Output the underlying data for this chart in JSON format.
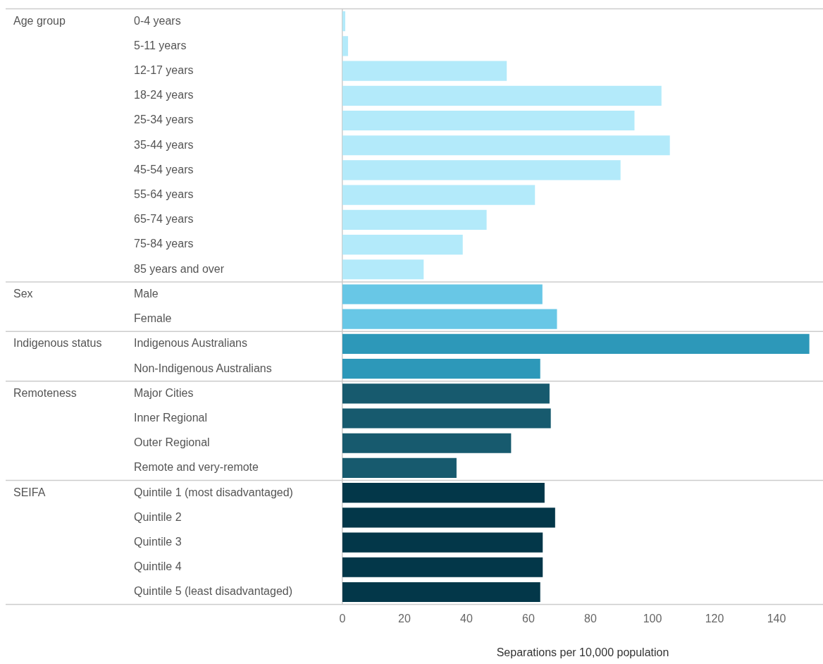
{
  "chart_data": {
    "type": "bar",
    "orientation": "horizontal",
    "xlabel": "Separations per 10,000 population",
    "categories": [
      "0-4 years",
      "5-11 years",
      "12-17 years",
      "18-24 years",
      "25-34 years",
      "35-44 years",
      "45-54 years",
      "55-64 years",
      "65-74 years",
      "75-84 years",
      "85 years and over",
      "Male",
      "Female",
      "Indigenous Australians",
      "Non-Indigenous Australians",
      "Major Cities",
      "Inner Regional",
      "Outer Regional",
      "Remote and very-remote",
      "Quintile 1 (most disadvantaged)",
      "Quintile 2",
      "Quintile 3",
      "Quintile 4",
      "Quintile 5 (least disadvantaged)"
    ],
    "values": [
      0.9,
      1.8,
      53.0,
      102.9,
      94.2,
      105.6,
      89.7,
      62.1,
      46.5,
      38.8,
      26.2,
      64.5,
      69.2,
      150.6,
      63.8,
      66.8,
      67.2,
      54.4,
      36.8,
      65.2,
      68.6,
      64.6,
      64.6,
      63.8
    ],
    "colors": [
      "#b3eafa",
      "#b3eafa",
      "#b3eafa",
      "#b3eafa",
      "#b3eafa",
      "#b3eafa",
      "#b3eafa",
      "#b3eafa",
      "#b3eafa",
      "#b3eafa",
      "#b3eafa",
      "#68c7e6",
      "#68c7e6",
      "#2d98b9",
      "#2d98b9",
      "#175a6e",
      "#175a6e",
      "#175a6e",
      "#175a6e",
      "#033749",
      "#033749",
      "#033749",
      "#033749",
      "#033749"
    ],
    "annotations": [
      "Age group",
      "Sex",
      "Indigenous status",
      "Remoteness",
      "SEIFA"
    ],
    "legend": false,
    "xlim": [
      0,
      155
    ],
    "xticks": [
      0,
      20,
      40,
      60,
      80,
      100,
      120,
      140
    ]
  }
}
